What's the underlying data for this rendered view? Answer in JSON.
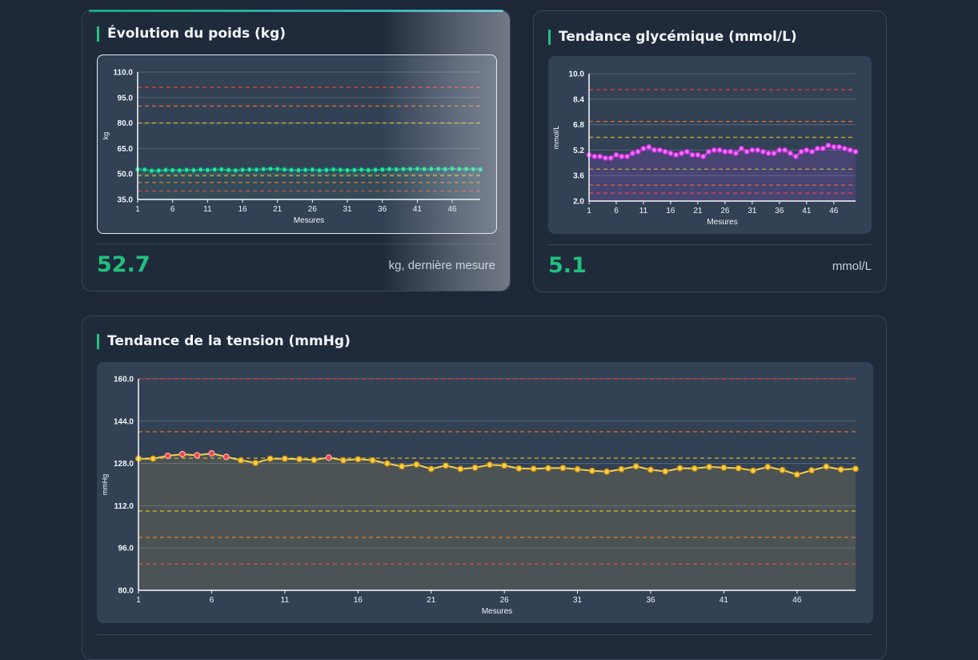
{
  "cards": {
    "weight": {
      "title": "Évolution du poids (kg)",
      "value": "52.7",
      "unit": "kg, dernière mesure"
    },
    "glucose": {
      "title": "Tendance glycémique (mmol/L)",
      "value": "5.1",
      "unit": "mmol/L"
    },
    "pressure": {
      "title": "Tendance de la tension (mmHg)"
    }
  },
  "colors": {
    "accent": "#22c07e",
    "weight_line": "#2fe39a",
    "glucose_line": "#e879f9",
    "pressure_line": "#f5d04e",
    "pressure_alert": "#ef4444"
  },
  "chart_data": [
    {
      "id": "weight",
      "type": "line",
      "xlabel": "Mesures",
      "ylabel": "kg",
      "ylim": [
        35,
        110
      ],
      "yticks": [
        "110.0",
        "95.0",
        "80.0",
        "65.0",
        "50.0",
        "35.0"
      ],
      "xticks": [
        1,
        6,
        11,
        16,
        21,
        26,
        31,
        36,
        41,
        46
      ],
      "n": 50,
      "thresholds": [
        {
          "value": 101,
          "color": "#c0443a"
        },
        {
          "value": 90,
          "color": "#c56a33"
        },
        {
          "value": 80,
          "color": "#b7a22d"
        },
        {
          "value": 49,
          "color": "#b7a22d"
        },
        {
          "value": 45,
          "color": "#c56a33"
        },
        {
          "value": 40,
          "color": "#c0443a"
        }
      ],
      "series": [
        {
          "values": [
            52.7,
            52.5,
            51.9,
            52.0,
            52.3,
            52.2,
            52.1,
            52.4,
            52.2,
            52.5,
            52.3,
            52.6,
            52.7,
            52.3,
            52.1,
            52.4,
            52.6,
            52.5,
            52.8,
            53.0,
            52.9,
            52.6,
            52.3,
            52.2,
            52.4,
            52.5,
            52.1,
            52.3,
            52.6,
            52.4,
            52.2,
            52.3,
            52.5,
            52.2,
            52.4,
            52.6,
            52.8,
            52.7,
            52.8,
            52.9,
            53.0,
            52.8,
            52.9,
            53.0,
            52.8,
            53.1,
            52.8,
            52.9,
            52.8,
            52.7
          ]
        }
      ]
    },
    {
      "id": "glucose",
      "type": "line",
      "xlabel": "Mesures",
      "ylabel": "mmol/L",
      "ylim": [
        2.0,
        10.0
      ],
      "yticks": [
        "10.0",
        "8.4",
        "6.8",
        "5.2",
        "3.6",
        "2.0"
      ],
      "xticks": [
        1,
        6,
        11,
        16,
        21,
        26,
        31,
        36,
        41,
        46
      ],
      "n": 50,
      "thresholds": [
        {
          "value": 9.0,
          "color": "#c0443a"
        },
        {
          "value": 7.0,
          "color": "#c56a33"
        },
        {
          "value": 6.0,
          "color": "#b7a22d"
        },
        {
          "value": 4.0,
          "color": "#b7a22d"
        },
        {
          "value": 3.0,
          "color": "#c56a33"
        },
        {
          "value": 2.5,
          "color": "#c0443a"
        }
      ],
      "series": [
        {
          "values": [
            4.9,
            4.8,
            4.8,
            4.7,
            4.7,
            4.9,
            4.8,
            4.8,
            5.0,
            5.1,
            5.3,
            5.4,
            5.2,
            5.2,
            5.1,
            5.0,
            4.9,
            5.0,
            5.1,
            4.9,
            4.9,
            4.8,
            5.1,
            5.2,
            5.2,
            5.1,
            5.1,
            5.0,
            5.3,
            5.1,
            5.2,
            5.2,
            5.1,
            5.0,
            5.0,
            5.2,
            5.2,
            5.0,
            4.8,
            5.1,
            5.2,
            5.1,
            5.3,
            5.3,
            5.5,
            5.4,
            5.4,
            5.3,
            5.2,
            5.1
          ]
        }
      ]
    },
    {
      "id": "pressure",
      "type": "line",
      "xlabel": "Mesures",
      "ylabel": "mmHg",
      "ylim": [
        80,
        160
      ],
      "yticks": [
        "160.0",
        "144.0",
        "128.0",
        "112.0",
        "96.0",
        "80.0"
      ],
      "xticks": [
        1,
        6,
        11,
        16,
        21,
        26,
        31,
        36,
        41,
        46
      ],
      "n": 50,
      "thresholds": [
        {
          "value": 160,
          "color": "#c0443a"
        },
        {
          "value": 140,
          "color": "#c56a33"
        },
        {
          "value": 130,
          "color": "#b7a22d"
        },
        {
          "value": 110,
          "color": "#b7a22d"
        },
        {
          "value": 100,
          "color": "#c56a33"
        },
        {
          "value": 90,
          "color": "#c0443a"
        }
      ],
      "alert_above": 130,
      "series": [
        {
          "values": [
            129.8,
            129.8,
            130.9,
            131.5,
            131.1,
            131.8,
            130.5,
            129.2,
            128.2,
            129.8,
            129.8,
            129.6,
            129.3,
            130.2,
            129.2,
            129.6,
            129.2,
            128.0,
            126.9,
            127.6,
            125.9,
            127.2,
            125.9,
            126.4,
            127.5,
            127.2,
            126.1,
            126.0,
            126.2,
            126.3,
            125.8,
            125.2,
            124.9,
            125.8,
            126.9,
            125.6,
            125.0,
            126.2,
            126.1,
            126.7,
            126.4,
            126.2,
            125.3,
            126.7,
            125.5,
            123.8,
            125.4,
            126.8,
            125.7,
            126.0
          ]
        }
      ]
    }
  ]
}
